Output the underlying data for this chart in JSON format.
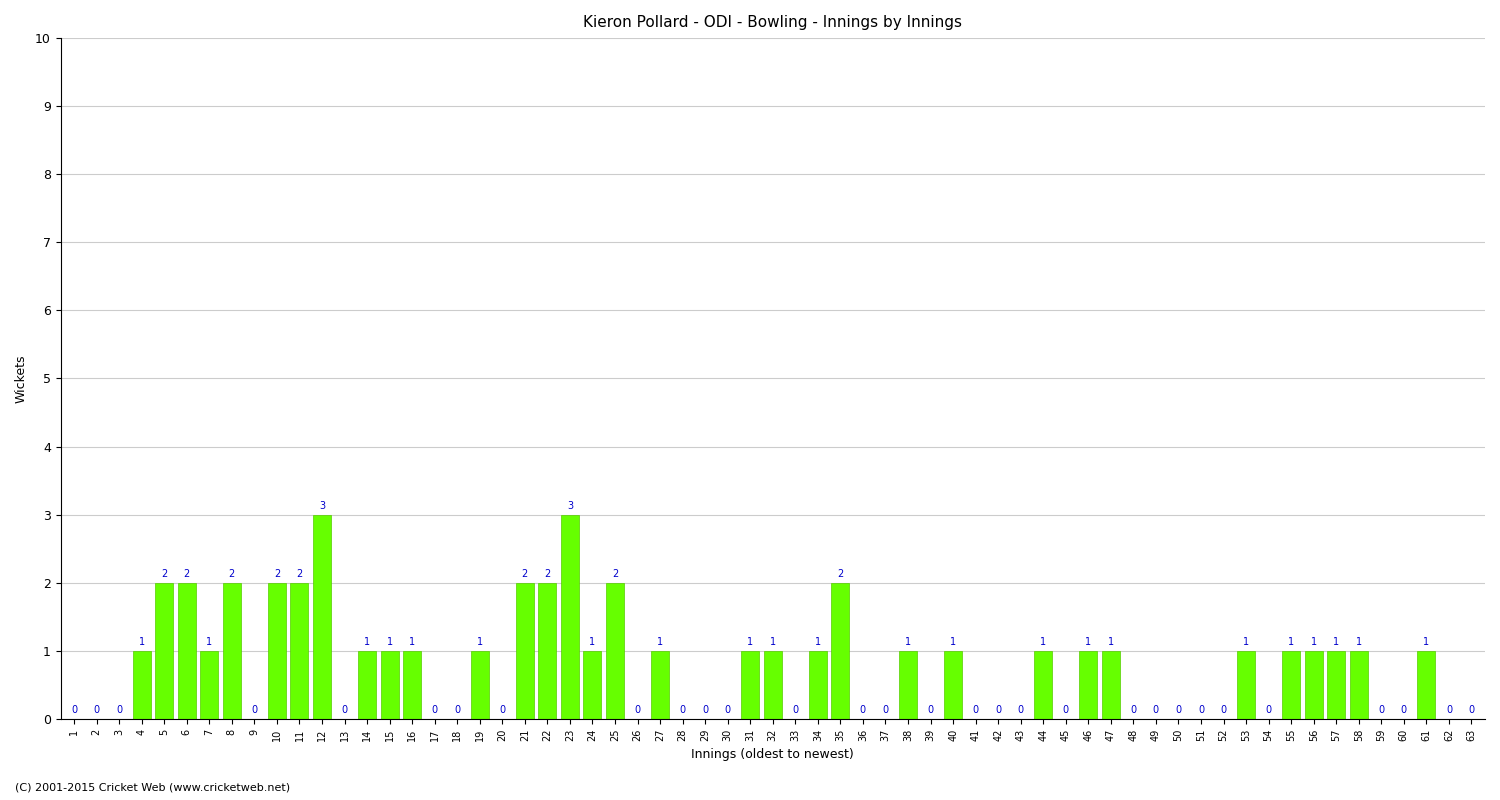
{
  "title": "Kieron Pollard - ODI - Bowling - Innings by Innings",
  "xlabel": "Innings (oldest to newest)",
  "ylabel": "Wickets",
  "footer": "(C) 2001-2015 Cricket Web (www.cricketweb.net)",
  "ylim": [
    0,
    10
  ],
  "yticks": [
    0,
    1,
    2,
    3,
    4,
    5,
    6,
    7,
    8,
    9,
    10
  ],
  "bar_color": "#66ff00",
  "bar_edge_color": "#55cc00",
  "label_color": "#0000cc",
  "background_color": "#ffffff",
  "grid_color": "#cccccc",
  "innings": [
    1,
    2,
    3,
    4,
    5,
    6,
    7,
    8,
    9,
    10,
    11,
    12,
    13,
    14,
    15,
    16,
    17,
    18,
    19,
    20,
    21,
    22,
    23,
    24,
    25,
    26,
    27,
    28,
    29,
    30,
    31,
    32,
    33,
    34,
    35,
    36,
    37,
    38,
    39,
    40,
    41,
    42,
    43,
    44,
    45,
    46,
    47,
    48,
    49,
    50,
    51,
    52,
    53,
    54,
    55,
    56,
    57,
    58,
    59,
    60,
    61,
    62,
    63
  ],
  "wickets": [
    0,
    0,
    0,
    1,
    2,
    2,
    1,
    2,
    0,
    2,
    2,
    3,
    0,
    1,
    1,
    1,
    0,
    0,
    1,
    0,
    2,
    2,
    3,
    1,
    2,
    0,
    1,
    0,
    0,
    0,
    1,
    1,
    0,
    1,
    2,
    0,
    0,
    1,
    0,
    1,
    0,
    0,
    0,
    1,
    0,
    1,
    1,
    0,
    0,
    0,
    0,
    0,
    1,
    0,
    1,
    1,
    1,
    1,
    0,
    0,
    1,
    0,
    0
  ]
}
